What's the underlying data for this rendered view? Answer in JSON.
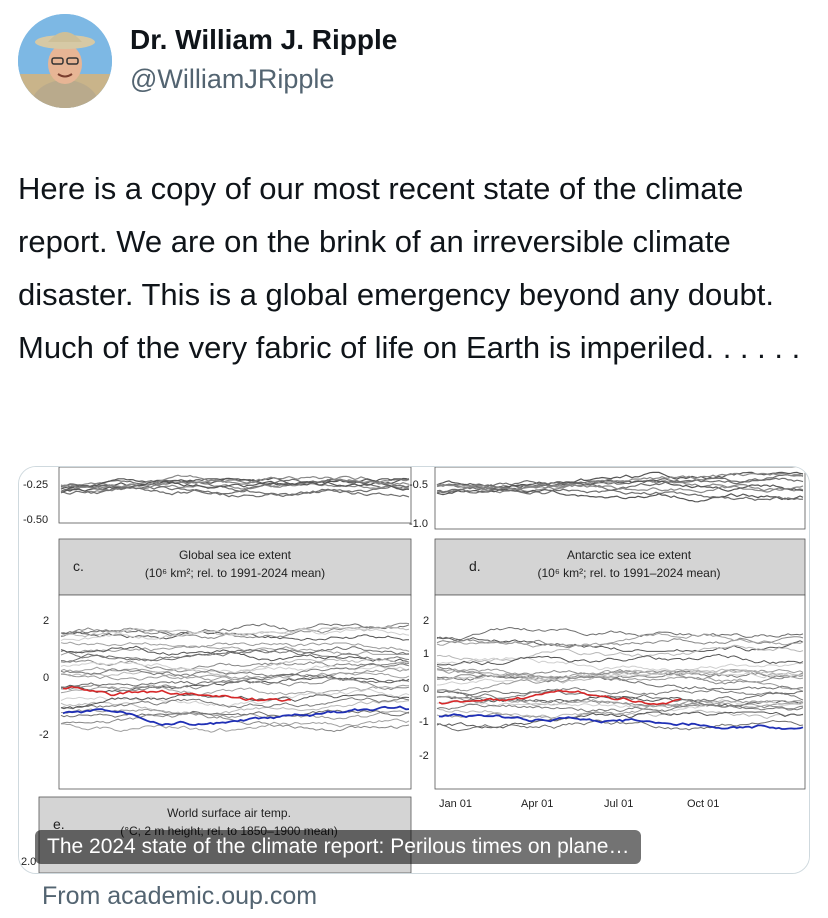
{
  "author": {
    "name": "Dr. William J. Ripple",
    "handle": "@WilliamJRipple"
  },
  "tweet_text": "Here is a copy of our most recent state of the climate report. We are on the brink of an irreversible climate disaster. This is a global emergency beyond any doubt. Much of the very fabric of life on Earth is imperiled. . . . . .",
  "link_card": {
    "caption": "The 2024 state of the climate report: Perilous times on plane…",
    "source": "From academic.oup.com",
    "figure": {
      "top_left_ticks": [
        "-0.25",
        "-0.50"
      ],
      "top_right_ticks": [
        "-0.5",
        "-1.0"
      ],
      "panel_c": {
        "letter": "c.",
        "title": "Global sea ice extent",
        "subtitle": "(10⁶ km²; rel. to 1991-2024 mean)",
        "y_ticks": [
          "2",
          "0",
          "-2"
        ]
      },
      "panel_d": {
        "letter": "d.",
        "title": "Antarctic sea ice extent",
        "subtitle": "(10⁶ km²; rel. to 1991–2024 mean)",
        "y_ticks": [
          "2",
          "1",
          "0",
          "-1",
          "-2"
        ],
        "x_ticks": [
          "Jan 01",
          "Apr 01",
          "Jul 01",
          "Oct 01"
        ]
      },
      "panel_e": {
        "letter": "e.",
        "title": "World surface air temp.",
        "subtitle": "(°C; 2 m height; rel. to 1850–1900 mean)",
        "y_ticks": [
          "2.0"
        ]
      }
    }
  },
  "colors": {
    "current_year": "#d62728",
    "previous_year": "#1f2fb5",
    "history": "#8a8a8a"
  }
}
